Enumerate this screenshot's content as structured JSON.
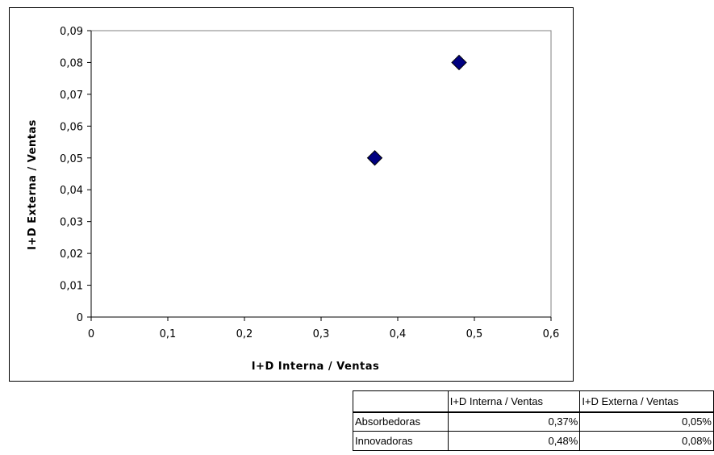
{
  "chart_data": {
    "type": "scatter",
    "title": "",
    "xlabel": "I+D Interna / Ventas",
    "ylabel": "I+D Externa / Ventas",
    "xlim": [
      0,
      0.6
    ],
    "ylim": [
      0,
      0.09
    ],
    "x_ticks": [
      "0",
      "0,1",
      "0,2",
      "0,3",
      "0,4",
      "0,5",
      "0,6"
    ],
    "y_ticks": [
      "0",
      "0,01",
      "0,02",
      "0,03",
      "0,04",
      "0,05",
      "0,06",
      "0,07",
      "0,08",
      "0,09"
    ],
    "grid": false,
    "legend": "none",
    "marker": "diamond",
    "marker_color": "#000080",
    "points": [
      {
        "x": 0.37,
        "y": 0.05
      },
      {
        "x": 0.48,
        "y": 0.08
      }
    ]
  },
  "table": {
    "headers": [
      "",
      "I+D Interna / Ventas",
      "I+D Externa / Ventas"
    ],
    "rows": [
      {
        "label": "Absorbedoras",
        "interna": "0,37%",
        "externa": "0,05%"
      },
      {
        "label": "Innovadoras",
        "interna": "0,48%",
        "externa": "0,08%"
      }
    ]
  }
}
